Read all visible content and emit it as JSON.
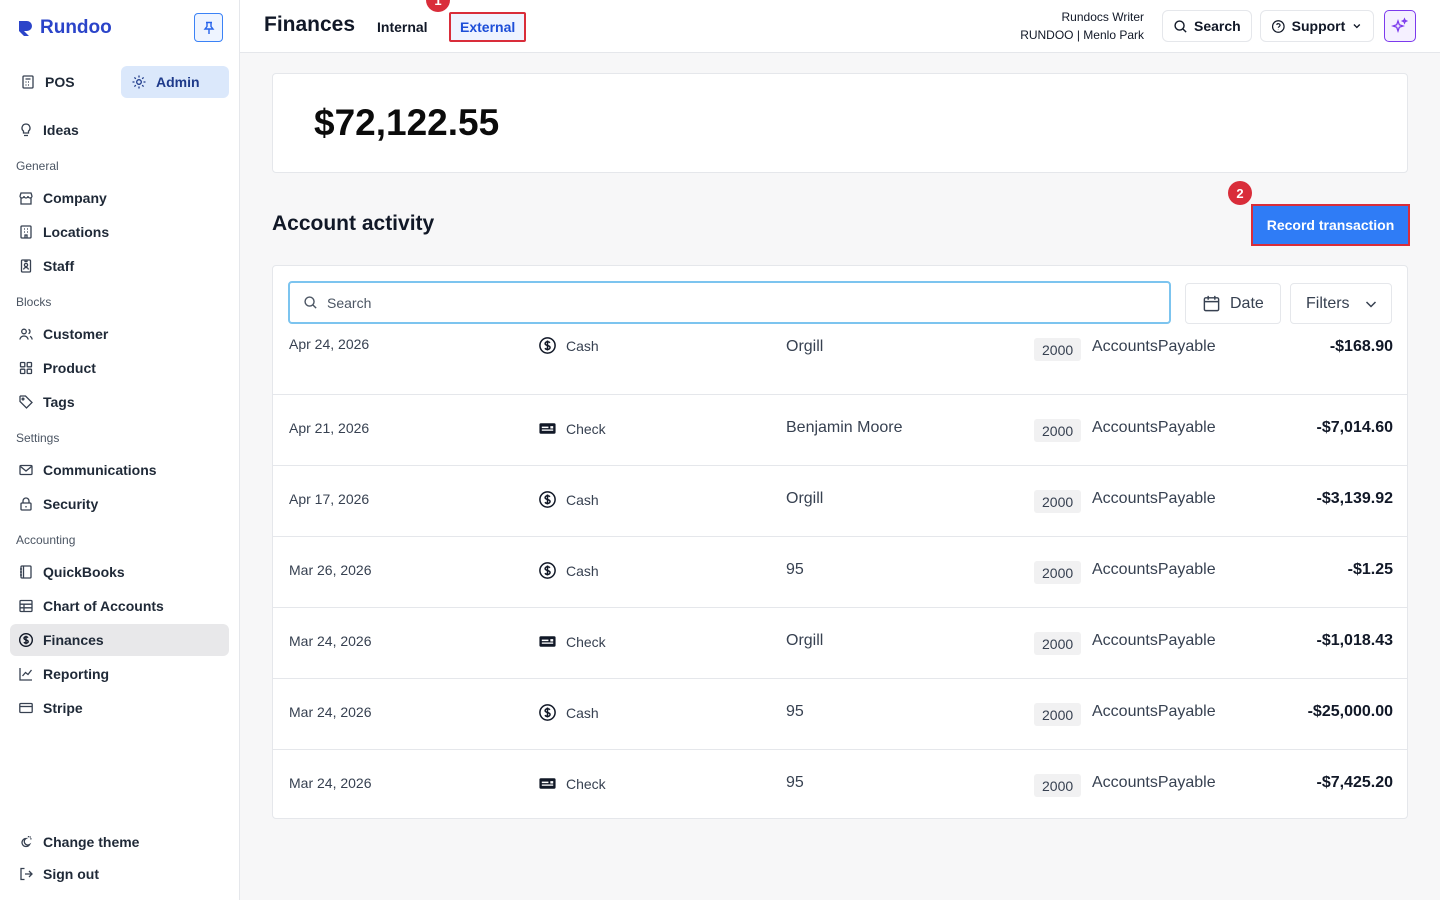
{
  "brand": {
    "name": "Rundoo"
  },
  "sidebar": {
    "modes": [
      {
        "label": "POS"
      },
      {
        "label": "Admin"
      }
    ],
    "ideas": "Ideas",
    "sections": {
      "general": "General",
      "blocks": "Blocks",
      "settings": "Settings",
      "accounting": "Accounting"
    },
    "items": {
      "company": "Company",
      "locations": "Locations",
      "staff": "Staff",
      "customer": "Customer",
      "product": "Product",
      "tags": "Tags",
      "communications": "Communications",
      "security": "Security",
      "quickbooks": "QuickBooks",
      "chart_of_accounts": "Chart of Accounts",
      "finances": "Finances",
      "reporting": "Reporting",
      "stripe": "Stripe"
    },
    "footer": {
      "change_theme": "Change theme",
      "sign_out": "Sign out"
    }
  },
  "header": {
    "title": "Finances",
    "tabs": [
      {
        "label": "Internal"
      },
      {
        "label": "External"
      }
    ],
    "user_name": "Rundocs Writer",
    "org_location": "RUNDOO | Menlo Park",
    "search_label": "Search",
    "support_label": "Support"
  },
  "annotations": {
    "step1": "1",
    "step2": "2"
  },
  "balance": "$72,122.55",
  "activity": {
    "title": "Account activity",
    "record_button": "Record transaction",
    "search_placeholder": "Search",
    "date_button": "Date",
    "filters_button": "Filters",
    "rows": [
      {
        "date": "Apr 24, 2026",
        "method": "Cash",
        "vendor": "Orgill",
        "account_number": "2000",
        "account_name": "AccountsPayable",
        "amount": "-$168.90"
      },
      {
        "date": "Apr 21, 2026",
        "method": "Check",
        "vendor": "Benjamin Moore",
        "account_number": "2000",
        "account_name": "AccountsPayable",
        "amount": "-$7,014.60"
      },
      {
        "date": "Apr 17, 2026",
        "method": "Cash",
        "vendor": "Orgill",
        "account_number": "2000",
        "account_name": "AccountsPayable",
        "amount": "-$3,139.92"
      },
      {
        "date": "Mar 26, 2026",
        "method": "Cash",
        "vendor": "95",
        "account_number": "2000",
        "account_name": "AccountsPayable",
        "amount": "-$1.25"
      },
      {
        "date": "Mar 24, 2026",
        "method": "Check",
        "vendor": "Orgill",
        "account_number": "2000",
        "account_name": "AccountsPayable",
        "amount": "-$1,018.43"
      },
      {
        "date": "Mar 24, 2026",
        "method": "Cash",
        "vendor": "95",
        "account_number": "2000",
        "account_name": "AccountsPayable",
        "amount": "-$25,000.00"
      },
      {
        "date": "Mar 24, 2026",
        "method": "Check",
        "vendor": "95",
        "account_number": "2000",
        "account_name": "AccountsPayable",
        "amount": "-$7,425.20"
      }
    ]
  },
  "colors": {
    "brand": "#2b44c9",
    "primary_button": "#2f7cf6",
    "annotation": "#d92d3a",
    "active_tab": "#1d4ed8"
  },
  "icons": {
    "cash": "dollar-circle-icon",
    "check": "check-card-icon"
  }
}
